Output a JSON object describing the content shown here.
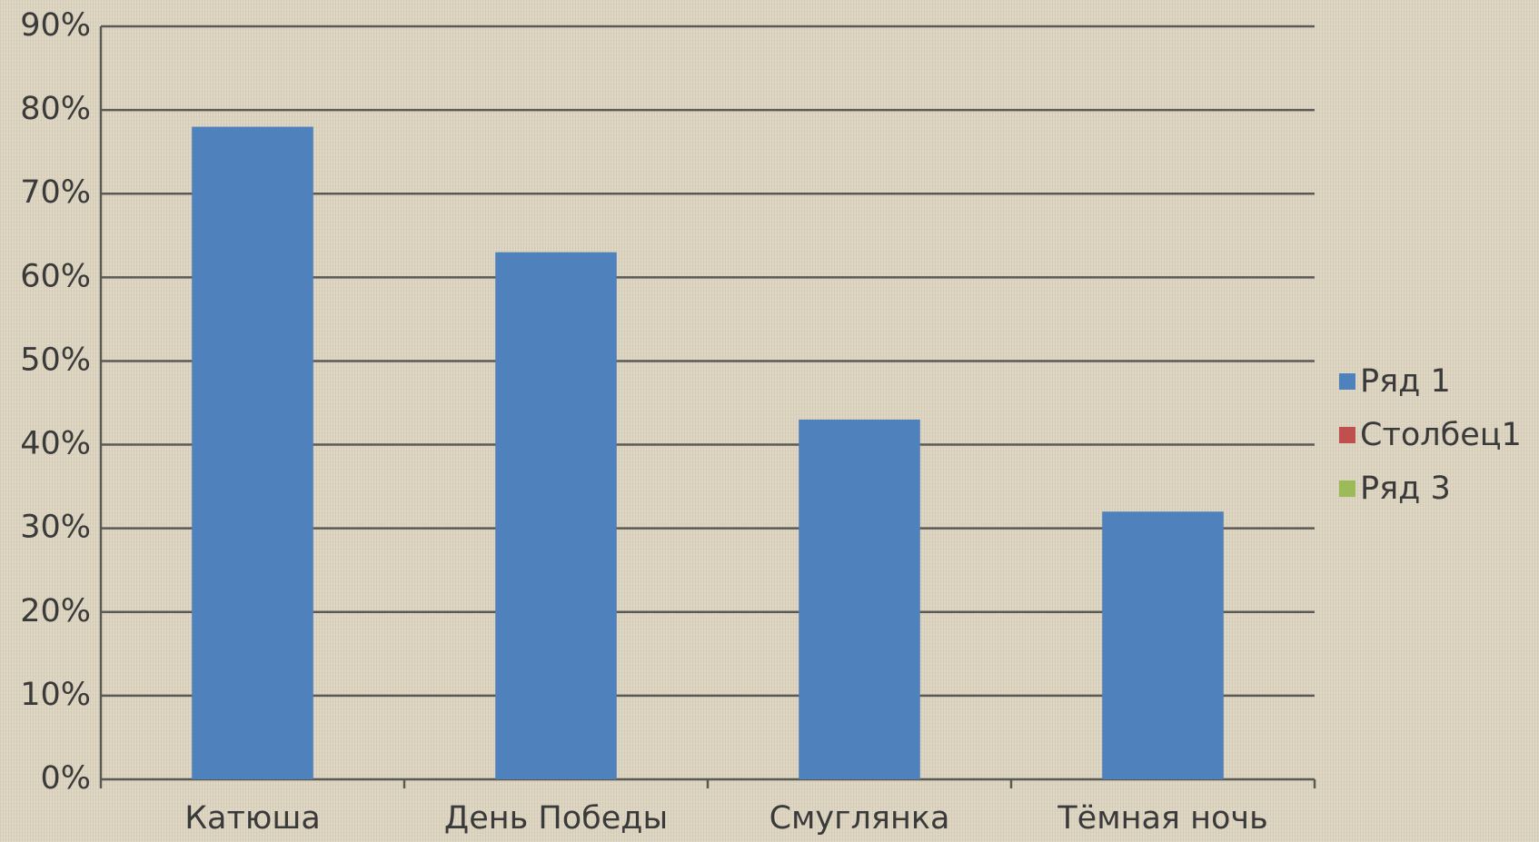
{
  "chart_data": {
    "type": "bar",
    "categories": [
      "Катюша",
      "День Победы",
      "Смуглянка",
      "Тёмная ночь"
    ],
    "series": [
      {
        "name": "Ряд 1",
        "color": "#4f81bd",
        "values": [
          78,
          63,
          43,
          32
        ]
      },
      {
        "name": "Столбец1",
        "color": "#c0504d",
        "values": [
          null,
          null,
          null,
          null
        ]
      },
      {
        "name": "Ряд 3",
        "color": "#9bbb59",
        "values": [
          null,
          null,
          null,
          null
        ]
      }
    ],
    "ylim": [
      0,
      90
    ],
    "yticks": [
      {
        "value": 0,
        "label": "0%"
      },
      {
        "value": 10,
        "label": "10%"
      },
      {
        "value": 20,
        "label": "20%"
      },
      {
        "value": 30,
        "label": "30%"
      },
      {
        "value": 40,
        "label": "40%"
      },
      {
        "value": 50,
        "label": "50%"
      },
      {
        "value": 60,
        "label": "60%"
      },
      {
        "value": 70,
        "label": "70%"
      },
      {
        "value": 80,
        "label": "80%"
      },
      {
        "value": 90,
        "label": "90%"
      }
    ],
    "grid": true,
    "legend": "right"
  }
}
